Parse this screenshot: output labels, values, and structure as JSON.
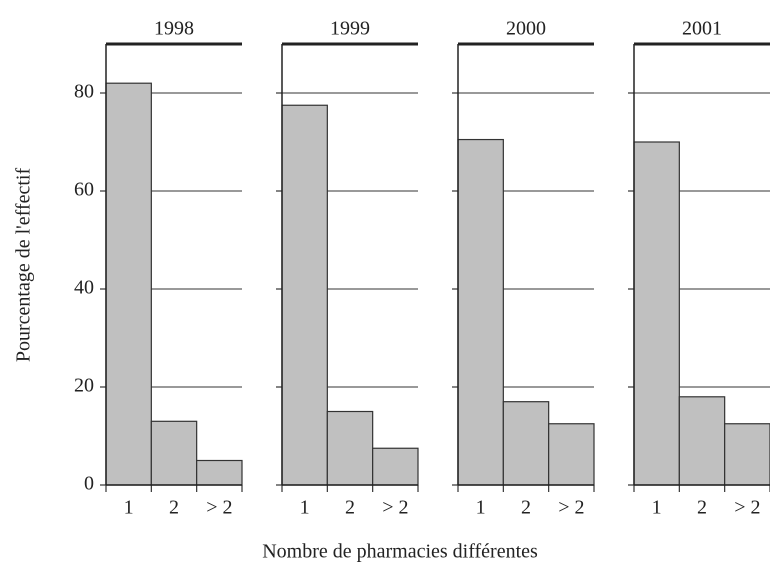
{
  "chart_data": {
    "type": "bar",
    "ylabel": "Pourcentage de l'effectif",
    "xlabel": "Nombre de pharmacies différentes",
    "categories": [
      "1",
      "2",
      "> 2"
    ],
    "color": "#c0c0c0",
    "ylim": [
      0,
      90
    ],
    "yticks": [
      0,
      20,
      40,
      60,
      80
    ],
    "grid": true,
    "facets": [
      {
        "title": "1998",
        "values": [
          82,
          13,
          5
        ]
      },
      {
        "title": "1999",
        "values": [
          77.5,
          15,
          7.5
        ]
      },
      {
        "title": "2000",
        "values": [
          70.5,
          17,
          12.5
        ]
      },
      {
        "title": "2001",
        "values": [
          70,
          18,
          12.5
        ]
      }
    ]
  }
}
